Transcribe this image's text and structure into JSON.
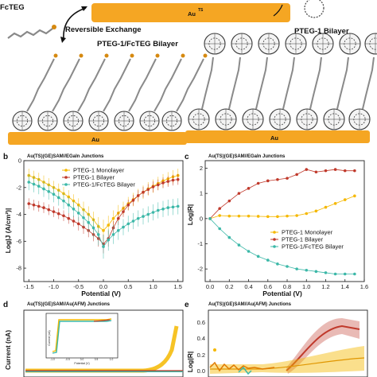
{
  "scheme": {
    "labels": {
      "fcteg": "FcTEG",
      "reversible_exchange": "Reversible Exchange",
      "bilayer_fc": "PTEG-1/FcTEG Bilayer",
      "bilayer_pteg": "PTEG-1 Bilayer",
      "au_ts": "Au"
    },
    "colors": {
      "substrate": "#F5A623",
      "fullerene": "#3a3a3a",
      "chain": "#8a8a8a"
    }
  },
  "panels": {
    "b": {
      "letter": "b",
      "title": "Au(TS)(GE)SAM//EGaIn Junctions",
      "xlabel": "Potential (V)",
      "ylabel": "Log|J (A/cm²)|",
      "xticks": [
        "-1.5",
        "-1.0",
        "-0.5",
        "0.0",
        "0.5",
        "1.0",
        "1.5"
      ],
      "yticks": [
        "0",
        "-2",
        "-4",
        "-6",
        "-8"
      ],
      "legend": [
        "PTEG-1 Monolayer",
        "PTEG-1 Bilayer",
        "PTEG-1/FcTEG Bilayer"
      ]
    },
    "c": {
      "letter": "c",
      "title": "Au(TS)(GE)SAM//EGaIn Junctions",
      "xlabel": "Potential (V)",
      "ylabel": "Log|R|",
      "xticks": [
        "0.0",
        "0.2",
        "0.4",
        "0.6",
        "0.8",
        "1.0",
        "1.2",
        "1.4",
        "1.6"
      ],
      "yticks": [
        "2",
        "1",
        "0",
        "-1",
        "-2"
      ],
      "legend": [
        "PTEG-1 Monolayer",
        "PTEG-1 Bilayer",
        "PTEG-1/FcTEG Bilayer"
      ]
    },
    "d": {
      "letter": "d",
      "title": "Au(TS)(GE)SAM//Au(AFM) Junctions",
      "ylabel": "Current (nA)",
      "inset_xlabel": "Potential (V)",
      "inset_ylabel": "Current (nA)",
      "inset_xticks": [
        "-1.0",
        "-0.5",
        "0.0",
        "0.5",
        "1.0"
      ]
    },
    "e": {
      "letter": "e",
      "title": "Au(TS)(GE)SAM//Au(AFM) Junctions",
      "ylabel": "Log|R|",
      "yticks": [
        "0.6",
        "0.4",
        "0.2",
        "0.0"
      ]
    }
  },
  "chart_data": [
    {
      "type": "line",
      "panel": "b",
      "xlim": [
        -1.6,
        1.6
      ],
      "ylim": [
        -9,
        0
      ],
      "x": [
        -1.5,
        -1.4,
        -1.3,
        -1.2,
        -1.1,
        -1.0,
        -0.9,
        -0.8,
        -0.7,
        -0.6,
        -0.5,
        -0.4,
        -0.3,
        -0.2,
        -0.1,
        0.0,
        0.1,
        0.2,
        0.3,
        0.4,
        0.5,
        0.6,
        0.7,
        0.8,
        0.9,
        1.0,
        1.1,
        1.2,
        1.3,
        1.4,
        1.5
      ],
      "series": [
        {
          "name": "PTEG-1 Monolayer",
          "color": "#F5B800",
          "values": [
            -1.1,
            -1.25,
            -1.4,
            -1.6,
            -1.8,
            -2.0,
            -2.2,
            -2.45,
            -2.7,
            -3.0,
            -3.3,
            -3.65,
            -4.0,
            -4.4,
            -4.9,
            -5.2,
            -4.8,
            -4.3,
            -3.9,
            -3.55,
            -3.2,
            -2.9,
            -2.6,
            -2.35,
            -2.1,
            -1.9,
            -1.7,
            -1.5,
            -1.35,
            -1.2,
            -1.1
          ],
          "errors": [
            0.5,
            0.5,
            0.5,
            0.5,
            0.5,
            0.5,
            0.5,
            0.5,
            0.5,
            0.5,
            0.5,
            0.6,
            0.6,
            0.6,
            0.7,
            0.8,
            0.7,
            0.6,
            0.6,
            0.5,
            0.5,
            0.5,
            0.5,
            0.5,
            0.5,
            0.5,
            0.5,
            0.5,
            0.5,
            0.5,
            0.5
          ]
        },
        {
          "name": "PTEG-1 Bilayer",
          "color": "#C0392B",
          "values": [
            -3.2,
            -3.3,
            -3.4,
            -3.5,
            -3.65,
            -3.8,
            -3.95,
            -4.1,
            -4.3,
            -4.5,
            -4.7,
            -4.95,
            -5.2,
            -5.5,
            -5.8,
            -6.2,
            -5.8,
            -5.0,
            -4.3,
            -3.8,
            -3.3,
            -2.95,
            -2.6,
            -2.35,
            -2.15,
            -1.95,
            -1.8,
            -1.65,
            -1.55,
            -1.45,
            -1.4
          ],
          "errors": [
            0.4,
            0.4,
            0.4,
            0.4,
            0.4,
            0.4,
            0.4,
            0.4,
            0.4,
            0.4,
            0.5,
            0.5,
            0.5,
            0.5,
            0.6,
            0.7,
            0.6,
            0.5,
            0.5,
            0.4,
            0.4,
            0.4,
            0.4,
            0.4,
            0.4,
            0.4,
            0.4,
            0.4,
            0.4,
            0.4,
            0.4
          ]
        },
        {
          "name": "PTEG-1/FcTEG Bilayer",
          "color": "#3CB8A8",
          "values": [
            -1.6,
            -1.75,
            -1.9,
            -2.1,
            -2.3,
            -2.5,
            -2.75,
            -3.0,
            -3.3,
            -3.6,
            -3.9,
            -4.25,
            -4.6,
            -5.0,
            -5.5,
            -6.4,
            -5.9,
            -5.5,
            -5.2,
            -4.95,
            -4.7,
            -4.5,
            -4.3,
            -4.15,
            -4.0,
            -3.85,
            -3.7,
            -3.6,
            -3.5,
            -3.45,
            -3.4
          ],
          "errors": [
            0.6,
            0.6,
            0.6,
            0.6,
            0.6,
            0.6,
            0.6,
            0.6,
            0.6,
            0.6,
            0.6,
            0.7,
            0.7,
            0.7,
            0.8,
            0.9,
            0.8,
            0.7,
            0.7,
            0.6,
            0.6,
            0.6,
            0.6,
            0.6,
            0.6,
            0.6,
            0.6,
            0.6,
            0.6,
            0.6,
            0.6
          ]
        }
      ]
    },
    {
      "type": "line",
      "panel": "c",
      "xlim": [
        -0.05,
        1.6
      ],
      "ylim": [
        -2.5,
        2.3
      ],
      "x": [
        0.0,
        0.1,
        0.2,
        0.3,
        0.4,
        0.5,
        0.6,
        0.7,
        0.8,
        0.9,
        1.0,
        1.1,
        1.2,
        1.3,
        1.4,
        1.5
      ],
      "series": [
        {
          "name": "PTEG-1 Monolayer",
          "color": "#F5B800",
          "values": [
            0.0,
            0.12,
            0.1,
            0.1,
            0.1,
            0.09,
            0.08,
            0.08,
            0.1,
            0.12,
            0.2,
            0.3,
            0.45,
            0.6,
            0.75,
            0.9
          ]
        },
        {
          "name": "PTEG-1 Bilayer",
          "color": "#C0392B",
          "values": [
            0.0,
            0.4,
            0.7,
            1.0,
            1.2,
            1.4,
            1.5,
            1.55,
            1.6,
            1.75,
            1.95,
            1.85,
            1.9,
            1.95,
            1.9,
            1.9
          ]
        },
        {
          "name": "PTEG-1/FcTEG Bilayer",
          "color": "#3CB8A8",
          "values": [
            0.0,
            -0.4,
            -0.75,
            -1.05,
            -1.3,
            -1.5,
            -1.65,
            -1.8,
            -1.9,
            -2.0,
            -2.05,
            -2.1,
            -2.15,
            -2.2,
            -2.2,
            -2.2
          ]
        }
      ]
    }
  ]
}
